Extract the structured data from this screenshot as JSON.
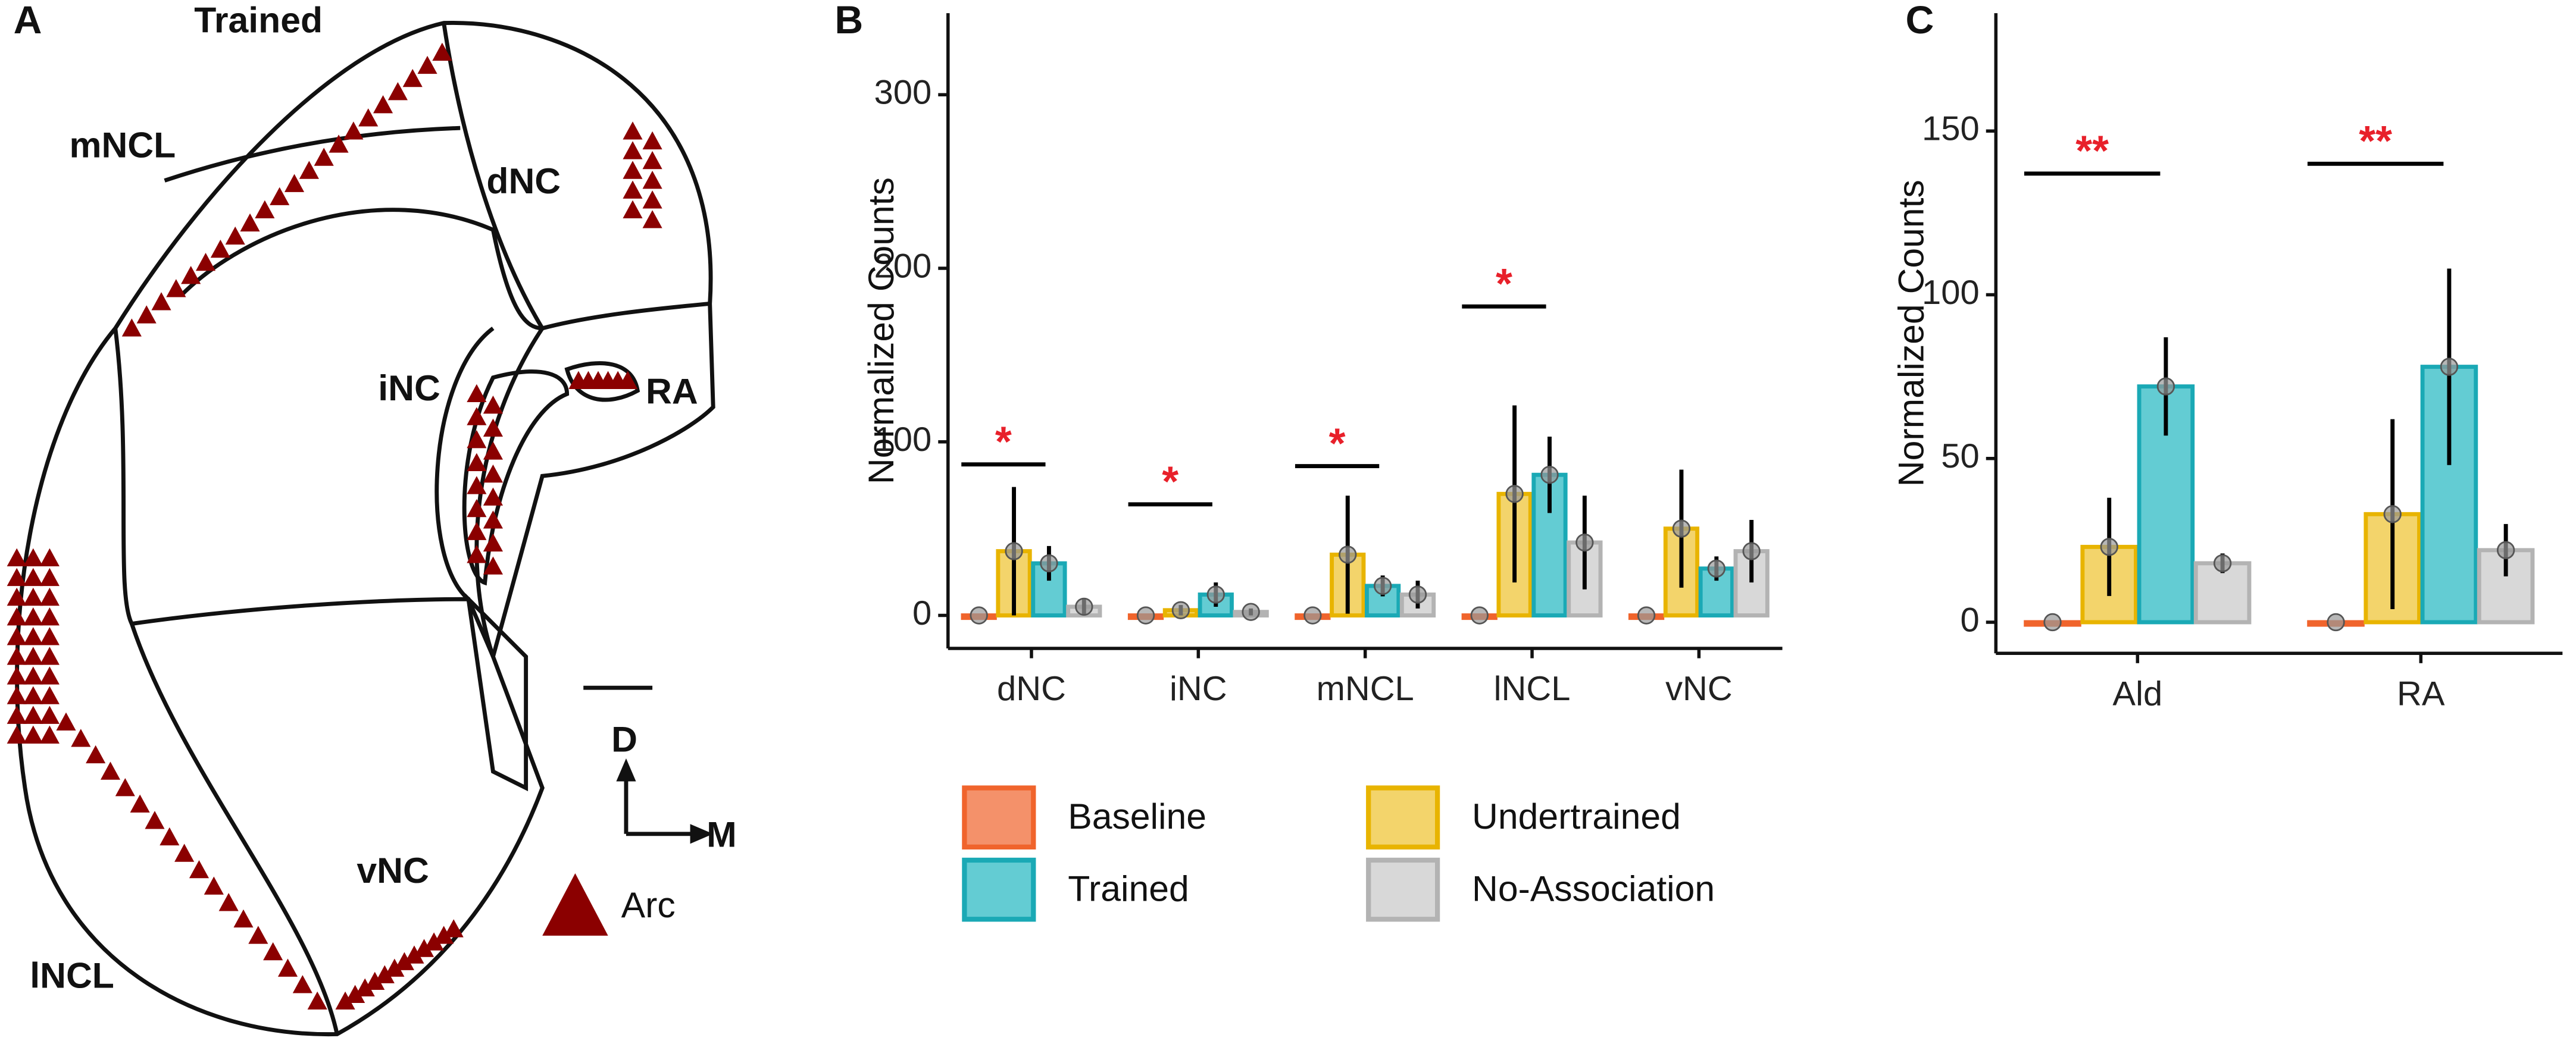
{
  "panels": [
    "A",
    "B",
    "C"
  ],
  "diagram": {
    "labels": [
      "Trained",
      "mNCL",
      "dNC",
      "iNC",
      "RA",
      "lNCL",
      "vNC"
    ],
    "directions": [
      "D",
      "M"
    ],
    "marker_legend": "Arc"
  },
  "chart_data": [
    {
      "type": "bar",
      "y_label": "Normalized Counts",
      "categories": [
        "dNC",
        "iNC",
        "mNCL",
        "lNCL",
        "vNC"
      ],
      "series": [
        {
          "name": "Baseline",
          "color": "#f4916a",
          "edge": "#f0642c",
          "values": [
            0,
            0,
            0,
            0,
            0
          ],
          "errors": [
            0,
            0,
            0,
            0,
            0
          ]
        },
        {
          "name": "Undertrained",
          "color": "#f3d46b",
          "edge": "#e8b400",
          "values": [
            37,
            3,
            35,
            70,
            50
          ],
          "errors": [
            37,
            3,
            34,
            51,
            34
          ]
        },
        {
          "name": "Trained",
          "color": "#63ccd3",
          "edge": "#1aa9b5",
          "values": [
            30,
            12,
            17,
            81,
            27
          ],
          "errors": [
            10,
            7,
            6,
            22,
            7
          ]
        },
        {
          "name": "No-Association",
          "color": "#d8d8d8",
          "edge": "#b3b3b3",
          "values": [
            5,
            2,
            12,
            42,
            37
          ],
          "errors": [
            5,
            2,
            8,
            27,
            18
          ]
        }
      ],
      "annotations": [
        {
          "text": "*",
          "category": "dNC",
          "y": 87
        },
        {
          "text": "*",
          "category": "iNC",
          "y": 64
        },
        {
          "text": "*",
          "category": "mNCL",
          "y": 86
        },
        {
          "text": "*",
          "category": "lNCL",
          "y": 178
        }
      ],
      "ylim": [
        -19,
        347
      ],
      "yticks": [
        0,
        100,
        200,
        300
      ],
      "legend": "bottom"
    },
    {
      "type": "bar",
      "y_label": "Normalized Counts",
      "categories": [
        "Ald",
        "RA"
      ],
      "series": [
        {
          "name": "Baseline",
          "color": "#f4916a",
          "edge": "#f0642c",
          "values": [
            0,
            0
          ],
          "errors": [
            0,
            0
          ]
        },
        {
          "name": "Undertrained",
          "color": "#f3d46b",
          "edge": "#e8b400",
          "values": [
            23,
            33
          ],
          "errors": [
            15,
            29
          ]
        },
        {
          "name": "Trained",
          "color": "#63ccd3",
          "edge": "#1aa9b5",
          "values": [
            72,
            78
          ],
          "errors": [
            15,
            30
          ]
        },
        {
          "name": "No-Association",
          "color": "#d8d8d8",
          "edge": "#b3b3b3",
          "values": [
            18,
            22
          ],
          "errors": [
            3,
            8
          ]
        }
      ],
      "annotations": [
        {
          "text": "**",
          "category": "Ald",
          "y": 137
        },
        {
          "text": "**",
          "category": "RA",
          "y": 140
        }
      ],
      "ylim": [
        -9.5,
        186
      ],
      "yticks": [
        0,
        50,
        100,
        150
      ]
    }
  ]
}
